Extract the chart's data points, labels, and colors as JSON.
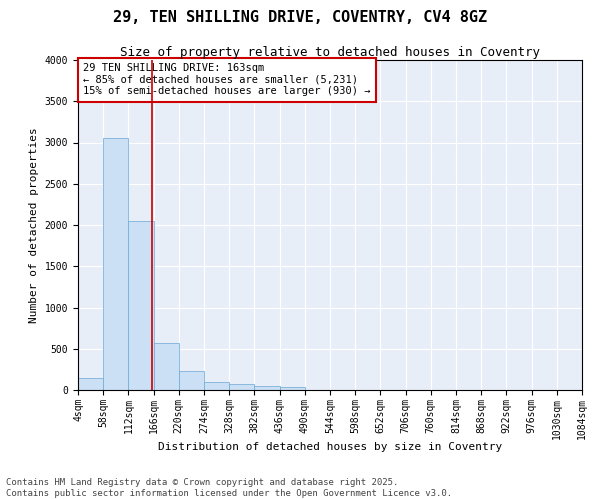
{
  "title": "29, TEN SHILLING DRIVE, COVENTRY, CV4 8GZ",
  "subtitle": "Size of property relative to detached houses in Coventry",
  "xlabel": "Distribution of detached houses by size in Coventry",
  "ylabel": "Number of detached properties",
  "bin_edges": [
    4,
    58,
    112,
    166,
    220,
    274,
    328,
    382,
    436,
    490,
    544,
    598,
    652,
    706,
    760,
    814,
    868,
    922,
    976,
    1030,
    1084
  ],
  "bar_heights": [
    150,
    3050,
    2050,
    575,
    225,
    100,
    75,
    50,
    35,
    5,
    3,
    2,
    1,
    1,
    1,
    0,
    0,
    0,
    0,
    0
  ],
  "bar_color": "#cce0f5",
  "bar_edgecolor": "#6aa8d4",
  "vline_x": 163,
  "vline_color": "#cc0000",
  "ylim": [
    0,
    4000
  ],
  "yticks": [
    0,
    500,
    1000,
    1500,
    2000,
    2500,
    3000,
    3500,
    4000
  ],
  "annotation_text": "29 TEN SHILLING DRIVE: 163sqm\n← 85% of detached houses are smaller (5,231)\n15% of semi-detached houses are larger (930) →",
  "annotation_box_facecolor": "#ffffff",
  "annotation_box_edgecolor": "#cc0000",
  "plot_bg_color": "#e8eef8",
  "fig_bg_color": "#ffffff",
  "footer_text": "Contains HM Land Registry data © Crown copyright and database right 2025.\nContains public sector information licensed under the Open Government Licence v3.0.",
  "title_fontsize": 11,
  "subtitle_fontsize": 9,
  "axis_label_fontsize": 8,
  "tick_fontsize": 7,
  "annotation_fontsize": 7.5,
  "footer_fontsize": 6.5
}
